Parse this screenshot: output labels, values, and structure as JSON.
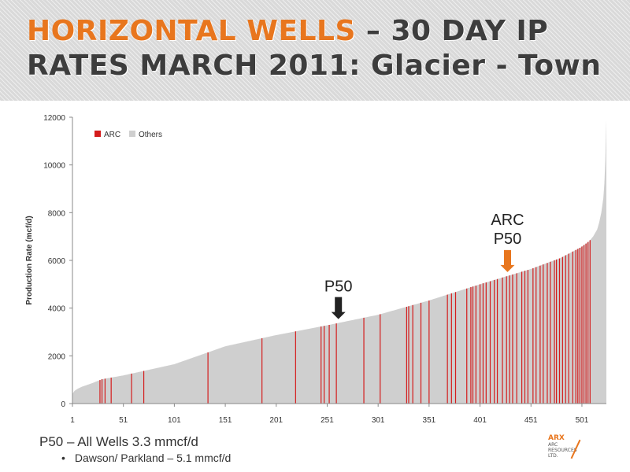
{
  "slide": {
    "title_accent": "HORIZONTAL WELLS",
    "title_rest": " – 30 DAY IP RATES MARCH 2011: Glacier - Town",
    "footer_main": "P50 – All Wells 3.3 mmcf/d",
    "footer_bullet": "Dawson/ Parkland – 5.1 mmcf/d",
    "logo_mark": "ARX",
    "logo_sub_1": "ARC",
    "logo_sub_2": "RESOURCES",
    "logo_sub_3": "LTD."
  },
  "colors": {
    "arc": "#d41c1c",
    "others": "#cfcfcf",
    "accent": "#e8761e",
    "title": "#3d3d3d"
  },
  "chart_data": {
    "type": "bar",
    "ylabel": "Production Rate (mcf/d)",
    "xlabel": "",
    "ylim": [
      0,
      12000
    ],
    "yticks": [
      0,
      2000,
      4000,
      6000,
      8000,
      10000,
      12000
    ],
    "xlim": [
      1,
      525
    ],
    "xticks": [
      1,
      51,
      101,
      151,
      201,
      251,
      301,
      351,
      401,
      451,
      501
    ],
    "grid": false,
    "legend": {
      "placement": "top-left",
      "entries": [
        {
          "name": "ARC",
          "color": "#d41c1c"
        },
        {
          "name": "Others",
          "color": "#cfcfcf"
        }
      ]
    },
    "curve": {
      "x": [
        1,
        3,
        6,
        10,
        20,
        30,
        51,
        101,
        151,
        201,
        251,
        301,
        351,
        401,
        451,
        480,
        500,
        508,
        512,
        516,
        518,
        520,
        522,
        523,
        524,
        525
      ],
      "y": [
        400,
        530,
        620,
        700,
        850,
        1020,
        1180,
        1650,
        2400,
        2870,
        3280,
        3720,
        4320,
        5000,
        5640,
        6100,
        6550,
        6800,
        7000,
        7300,
        7600,
        8000,
        8600,
        9200,
        10200,
        11900
      ]
    },
    "series": [
      {
        "name": "ARC",
        "x": [
          28,
          30,
          33,
          39,
          59,
          71,
          134,
          187,
          220,
          245,
          248,
          253,
          260,
          287,
          303,
          329,
          331,
          335,
          343,
          351,
          369,
          373,
          377,
          388,
          392,
          394,
          397,
          401,
          404,
          407,
          411,
          415,
          418,
          423,
          427,
          430,
          433,
          437,
          442,
          445,
          448,
          453,
          456,
          460,
          463,
          467,
          470,
          474,
          476,
          479,
          482,
          485,
          488,
          492,
          495,
          497,
          499,
          501,
          503,
          505,
          507,
          509
        ]
      }
    ],
    "annotations": [
      {
        "text": "P50",
        "x": 262,
        "arrow_color": "#222222"
      },
      {
        "text_line1": "ARC",
        "text_line2": "P50",
        "x": 428,
        "arrow_color": "#e8761e"
      }
    ]
  }
}
